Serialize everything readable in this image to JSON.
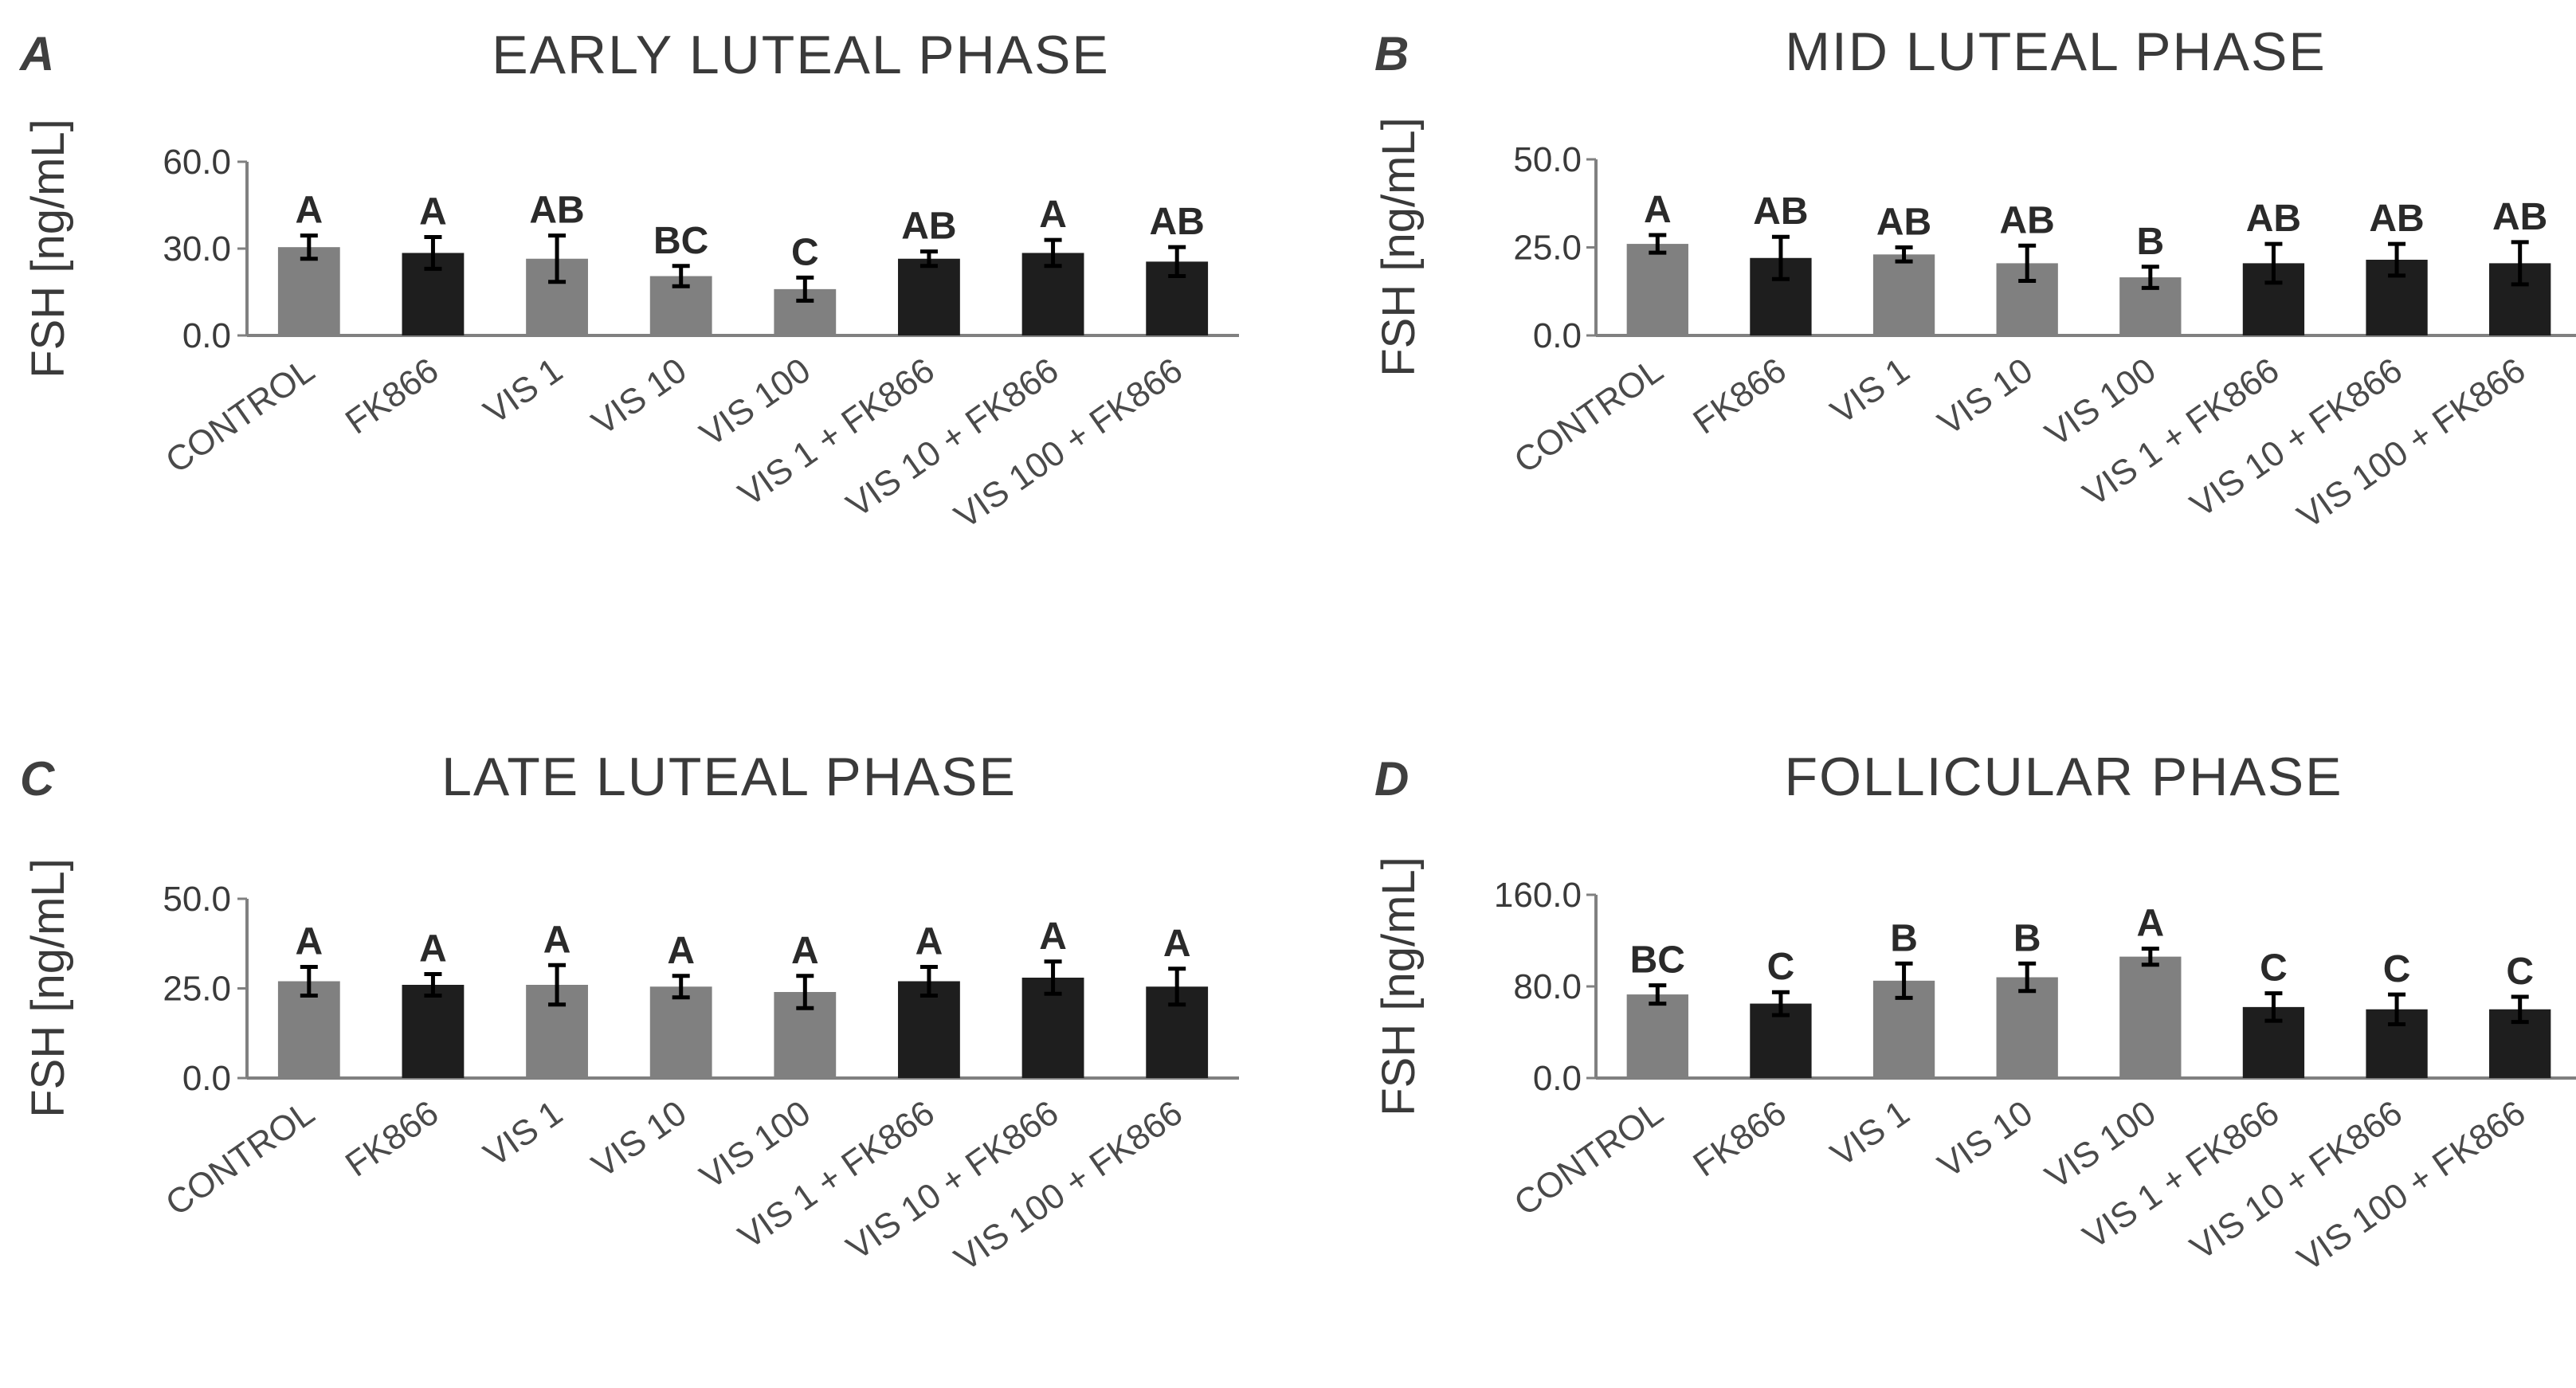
{
  "colors": {
    "gray_bar": "#808080",
    "black_bar": "#1e1e1e"
  },
  "chart_data": [
    {
      "type": "bar",
      "panel": "A",
      "title": "EARLY LUTEAL PHASE",
      "ylabel": "FSH [ng/mL]",
      "xlabel": "",
      "ylim": [
        0,
        60
      ],
      "yticks": [
        "0.0",
        "30.0",
        "60.0"
      ],
      "ytick_values": [
        0,
        30,
        60
      ],
      "categories": [
        "CONTROL",
        "FK866",
        "VIS 1",
        "VIS 10",
        "VIS 100",
        "VIS 1 + FK866",
        "VIS 10 + FK866",
        "VIS 100 + FK866"
      ],
      "values": [
        30.5,
        28.5,
        26.5,
        20.5,
        16.0,
        26.5,
        28.5,
        25.5
      ],
      "errors": [
        4.0,
        5.5,
        8.0,
        3.5,
        4.0,
        2.5,
        4.5,
        5.0
      ],
      "bar_color_keys": [
        "gray",
        "black",
        "gray",
        "gray",
        "gray",
        "black",
        "black",
        "black"
      ],
      "significance": [
        "A",
        "A",
        "AB",
        "BC",
        "C",
        "AB",
        "A",
        "AB"
      ]
    },
    {
      "type": "bar",
      "panel": "B",
      "title": "MID LUTEAL PHASE",
      "ylabel": "FSH [ng/mL]",
      "xlabel": "",
      "ylim": [
        0,
        50
      ],
      "yticks": [
        "0.0",
        "25.0",
        "50.0"
      ],
      "ytick_values": [
        0,
        25,
        50
      ],
      "categories": [
        "CONTROL",
        "FK866",
        "VIS 1",
        "VIS 10",
        "VIS 100",
        "VIS 1 + FK866",
        "VIS 10 + FK866",
        "VIS 100 + FK866"
      ],
      "values": [
        26.0,
        22.0,
        23.0,
        20.5,
        16.5,
        20.5,
        21.5,
        20.5
      ],
      "errors": [
        2.5,
        6.0,
        2.0,
        5.0,
        3.0,
        5.5,
        4.5,
        6.0
      ],
      "bar_color_keys": [
        "gray",
        "black",
        "gray",
        "gray",
        "gray",
        "black",
        "black",
        "black"
      ],
      "significance": [
        "A",
        "AB",
        "AB",
        "AB",
        "B",
        "AB",
        "AB",
        "AB"
      ]
    },
    {
      "type": "bar",
      "panel": "C",
      "title": "LATE LUTEAL PHASE",
      "ylabel": "FSH [ng/mL]",
      "xlabel": "",
      "ylim": [
        0,
        50
      ],
      "yticks": [
        "0.0",
        "25.0",
        "50.0"
      ],
      "ytick_values": [
        0,
        25,
        50
      ],
      "categories": [
        "CONTROL",
        "FK866",
        "VIS 1",
        "VIS 10",
        "VIS 100",
        "VIS 1 + FK866",
        "VIS 10 + FK866",
        "VIS 100 + FK866"
      ],
      "values": [
        27.0,
        26.0,
        26.0,
        25.5,
        24.0,
        27.0,
        28.0,
        25.5
      ],
      "errors": [
        4.0,
        3.0,
        5.5,
        3.0,
        4.5,
        4.0,
        4.5,
        5.0
      ],
      "bar_color_keys": [
        "gray",
        "black",
        "gray",
        "gray",
        "gray",
        "black",
        "black",
        "black"
      ],
      "significance": [
        "A",
        "A",
        "A",
        "A",
        "A",
        "A",
        "A",
        "A"
      ]
    },
    {
      "type": "bar",
      "panel": "D",
      "title": "FOLLICULAR PHASE",
      "ylabel": "FSH [ng/mL]",
      "xlabel": "",
      "ylim": [
        0,
        160
      ],
      "yticks": [
        "0.0",
        "80.0",
        "160.0"
      ],
      "ytick_values": [
        0,
        80,
        160
      ],
      "categories": [
        "CONTROL",
        "FK866",
        "VIS 1",
        "VIS 10",
        "VIS 100",
        "VIS 1 + FK866",
        "VIS 10 + FK866",
        "VIS 100 + FK866"
      ],
      "values": [
        73.0,
        65.0,
        85.0,
        88.0,
        106.0,
        62.0,
        60.0,
        60.0
      ],
      "errors": [
        8.0,
        10.0,
        15.0,
        12.0,
        7.0,
        12.0,
        13.0,
        11.0
      ],
      "bar_color_keys": [
        "gray",
        "black",
        "gray",
        "gray",
        "gray",
        "black",
        "black",
        "black"
      ],
      "significance": [
        "BC",
        "C",
        "B",
        "B",
        "A",
        "C",
        "C",
        "C"
      ]
    }
  ]
}
